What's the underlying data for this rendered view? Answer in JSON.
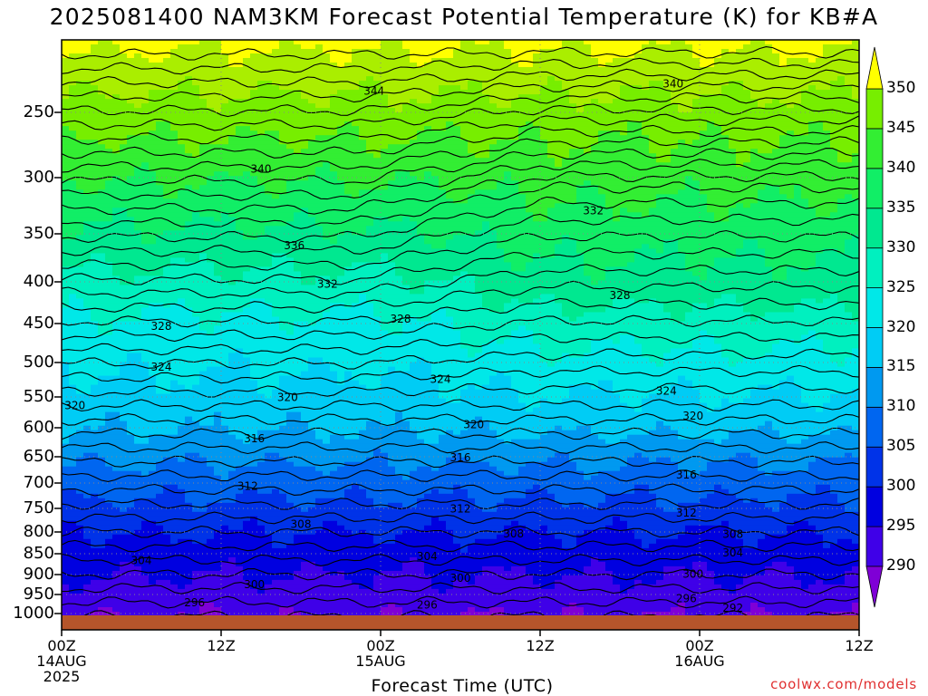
{
  "title": "2025081400 NAM3KM Forecast Potential Temperature (K) for KB#A",
  "x_axis_label": "Forecast Time (UTC)",
  "credit": "coolwx.com/models",
  "colors": {
    "bands": [
      "#7f00d6",
      "#3f00e8",
      "#0000e0",
      "#0033e8",
      "#0066f0",
      "#0099f0",
      "#00ccf5",
      "#00e8e8",
      "#00f0bf",
      "#00e890",
      "#11ee66",
      "#33ee33",
      "#77ee00",
      "#aaee00",
      "#ffff00"
    ],
    "ground": "#b5552b",
    "contour": "#000000",
    "grid": "#888888"
  },
  "chart_data": {
    "type": "heatmap",
    "title": "2025081400 NAM3KM Forecast Potential Temperature (K) for KB#A",
    "xlabel": "Forecast Time (UTC)",
    "ylabel": "",
    "x_ticks": [
      {
        "hour": 0,
        "label": "00Z",
        "sub": [
          "14AUG",
          "2025"
        ]
      },
      {
        "hour": 12,
        "label": "12Z",
        "sub": []
      },
      {
        "hour": 24,
        "label": "00Z",
        "sub": [
          "15AUG"
        ]
      },
      {
        "hour": 36,
        "label": "12Z",
        "sub": []
      },
      {
        "hour": 48,
        "label": "00Z",
        "sub": [
          "16AUG"
        ]
      },
      {
        "hour": 60,
        "label": "12Z",
        "sub": []
      }
    ],
    "xlim": [
      0,
      60
    ],
    "y_ticks": [
      250,
      300,
      350,
      400,
      450,
      500,
      550,
      600,
      650,
      700,
      750,
      800,
      850,
      900,
      950,
      1000
    ],
    "ylim": [
      1000,
      200
    ],
    "ground_pressure": 1000,
    "colorbar_levels": [
      290,
      295,
      300,
      305,
      310,
      315,
      320,
      325,
      330,
      335,
      340,
      345,
      350
    ],
    "contour_interval": 4,
    "contour_labels": [
      {
        "value": 344,
        "hour": 23.5,
        "pressure": 235
      },
      {
        "value": 340,
        "hour": 15.0,
        "pressure": 293
      },
      {
        "value": 340,
        "hour": 46.0,
        "pressure": 230
      },
      {
        "value": 336,
        "hour": 17.5,
        "pressure": 362
      },
      {
        "value": 332,
        "hour": 20.0,
        "pressure": 402
      },
      {
        "value": 332,
        "hour": 40.0,
        "pressure": 329
      },
      {
        "value": 328,
        "hour": 7.5,
        "pressure": 453
      },
      {
        "value": 328,
        "hour": 25.5,
        "pressure": 444
      },
      {
        "value": 328,
        "hour": 42.0,
        "pressure": 416
      },
      {
        "value": 324,
        "hour": 7.5,
        "pressure": 506
      },
      {
        "value": 324,
        "hour": 28.5,
        "pressure": 524
      },
      {
        "value": 324,
        "hour": 45.5,
        "pressure": 541
      },
      {
        "value": 320,
        "hour": 1.0,
        "pressure": 563
      },
      {
        "value": 320,
        "hour": 17.0,
        "pressure": 550
      },
      {
        "value": 320,
        "hour": 31.0,
        "pressure": 594
      },
      {
        "value": 320,
        "hour": 47.5,
        "pressure": 580
      },
      {
        "value": 316,
        "hour": 14.5,
        "pressure": 618
      },
      {
        "value": 316,
        "hour": 30.0,
        "pressure": 651
      },
      {
        "value": 316,
        "hour": 47.0,
        "pressure": 684
      },
      {
        "value": 312,
        "hour": 14.0,
        "pressure": 705
      },
      {
        "value": 312,
        "hour": 30.0,
        "pressure": 750
      },
      {
        "value": 312,
        "hour": 47.0,
        "pressure": 759
      },
      {
        "value": 308,
        "hour": 18.0,
        "pressure": 783
      },
      {
        "value": 308,
        "hour": 34.0,
        "pressure": 803
      },
      {
        "value": 308,
        "hour": 50.5,
        "pressure": 804
      },
      {
        "value": 304,
        "hour": 6.0,
        "pressure": 865
      },
      {
        "value": 304,
        "hour": 27.5,
        "pressure": 855
      },
      {
        "value": 304,
        "hour": 50.5,
        "pressure": 847
      },
      {
        "value": 300,
        "hour": 14.5,
        "pressure": 924
      },
      {
        "value": 300,
        "hour": 30.0,
        "pressure": 908
      },
      {
        "value": 300,
        "hour": 47.5,
        "pressure": 898
      },
      {
        "value": 296,
        "hour": 10.0,
        "pressure": 970
      },
      {
        "value": 296,
        "hour": 27.5,
        "pressure": 976
      },
      {
        "value": 296,
        "hour": 47.0,
        "pressure": 960
      },
      {
        "value": 292,
        "hour": 50.5,
        "pressure": 984
      }
    ]
  }
}
